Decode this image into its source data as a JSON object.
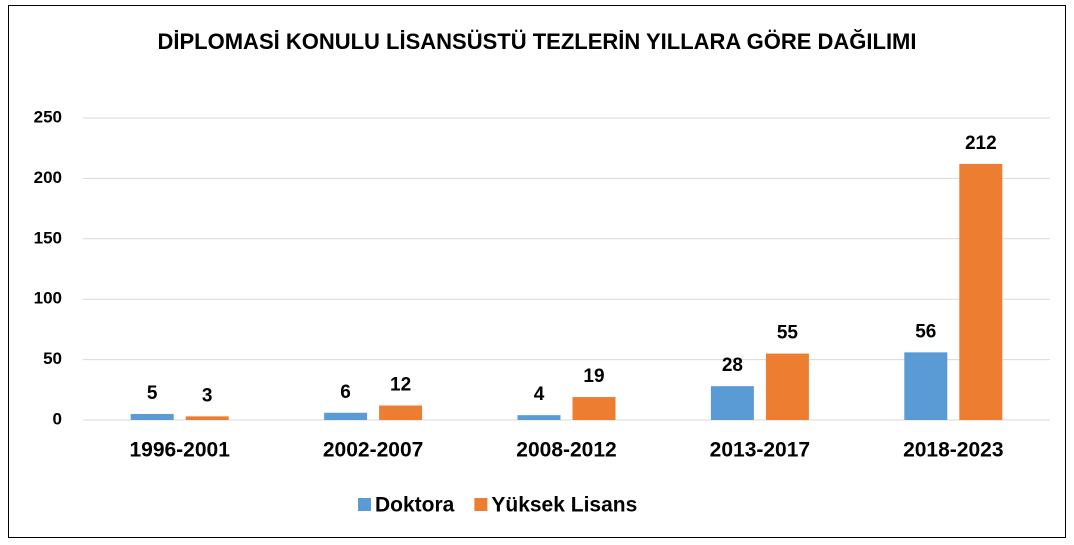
{
  "chart_data": {
    "type": "bar",
    "title": "DİPLOMASİ KONULU LİSANSÜSTÜ TEZLERİN YILLARA GÖRE DAĞILIMI",
    "categories": [
      "1996-2001",
      "2002-2007",
      "2008-2012",
      "2013-2017",
      "2018-2023"
    ],
    "series": [
      {
        "name": "Doktora",
        "color": "#5b9bd5",
        "values": [
          5,
          6,
          4,
          28,
          56
        ]
      },
      {
        "name": "Yüksek Lisans",
        "color": "#ed7d31",
        "values": [
          3,
          12,
          19,
          55,
          212
        ]
      }
    ],
    "ylim": [
      0,
      250
    ],
    "yticks": [
      0,
      50,
      100,
      150,
      200,
      250
    ],
    "grid": true,
    "legend": "bottom"
  }
}
